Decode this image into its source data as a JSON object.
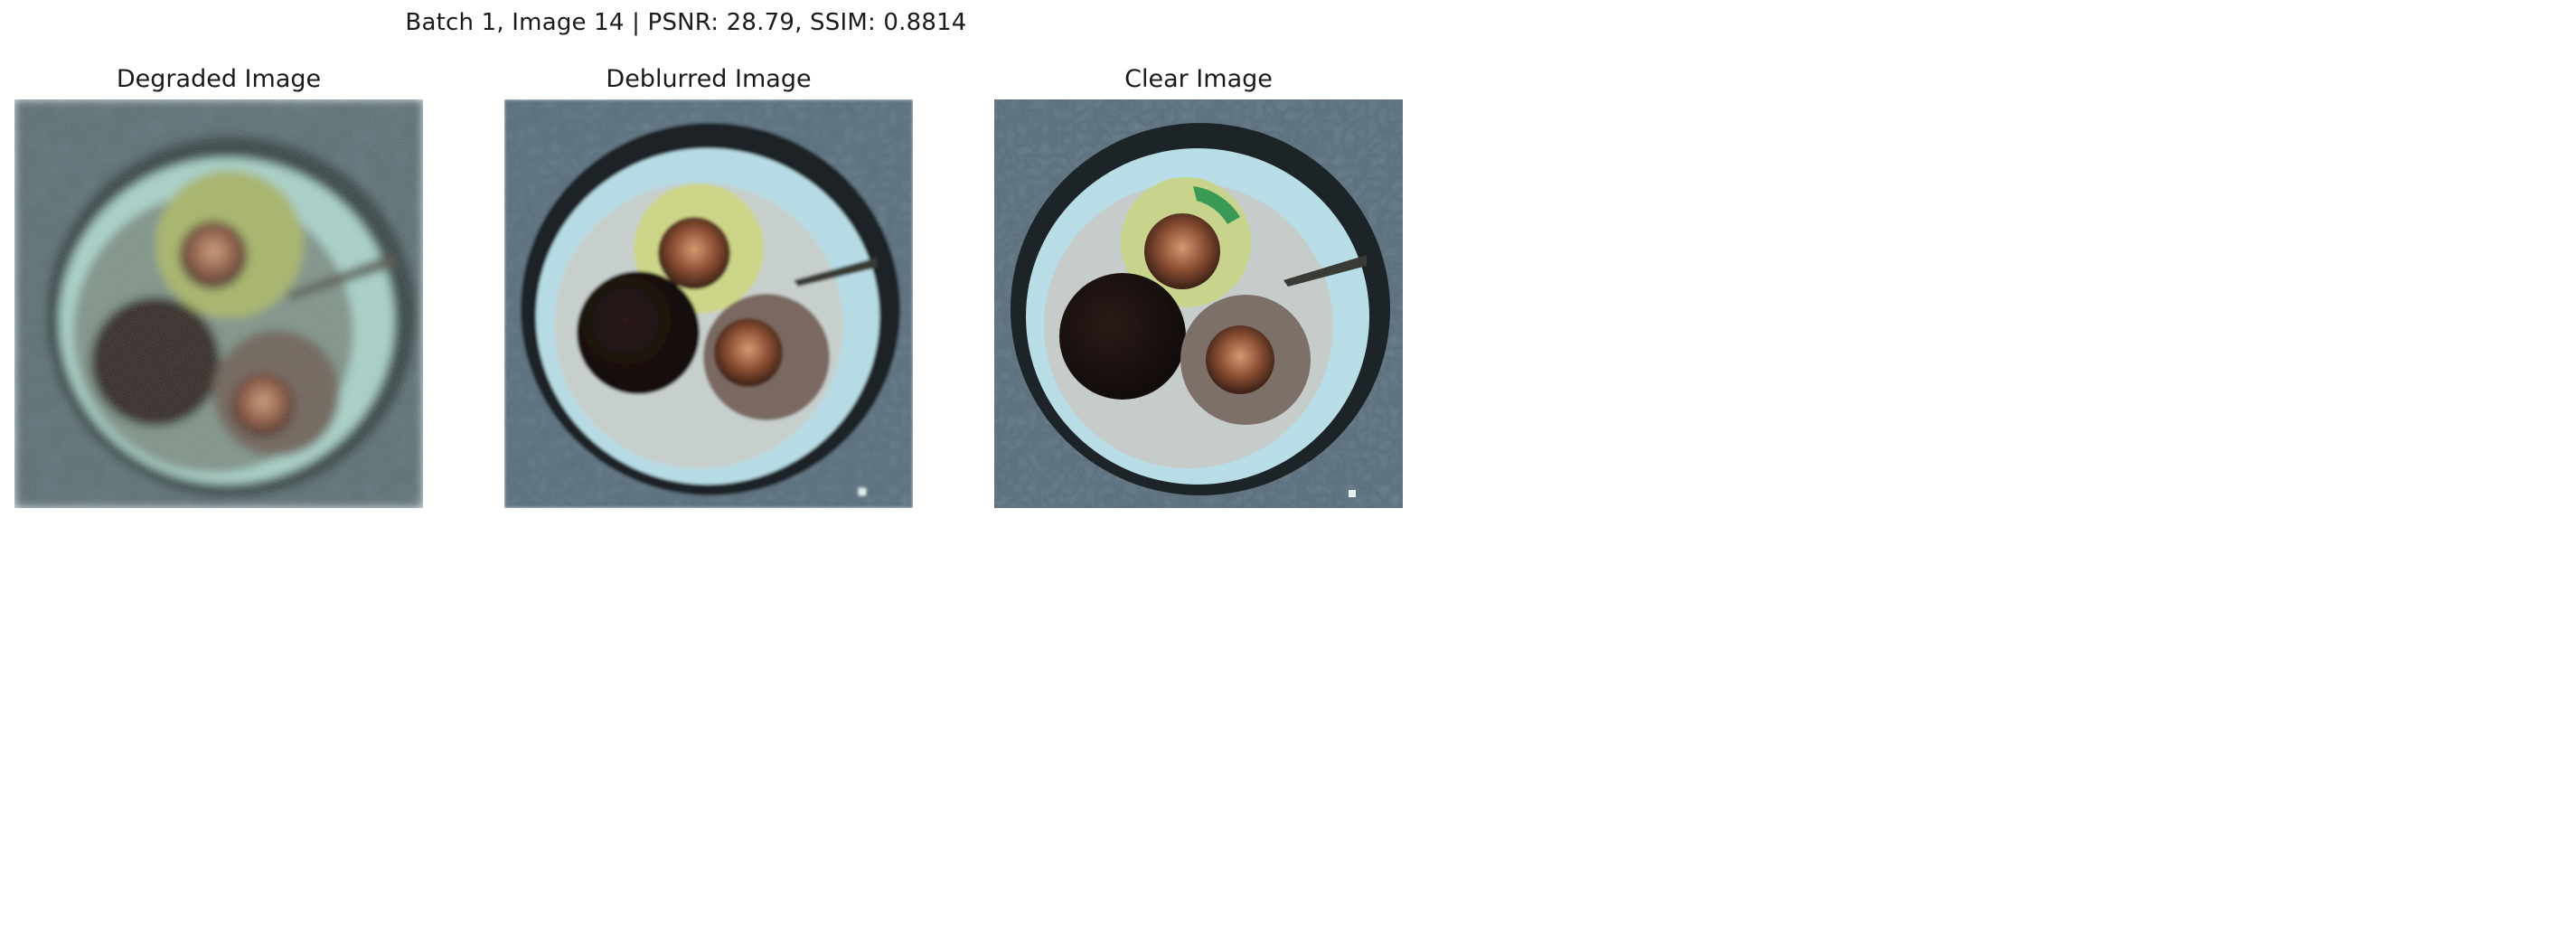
{
  "figure": {
    "suptitle": "Batch 1, Image 14 | PSNR: 28.79, SSIM: 0.8814"
  },
  "panels": [
    {
      "title": "Degraded Image"
    },
    {
      "title": "Deblurred Image"
    },
    {
      "title": "Clear Image"
    }
  ]
}
